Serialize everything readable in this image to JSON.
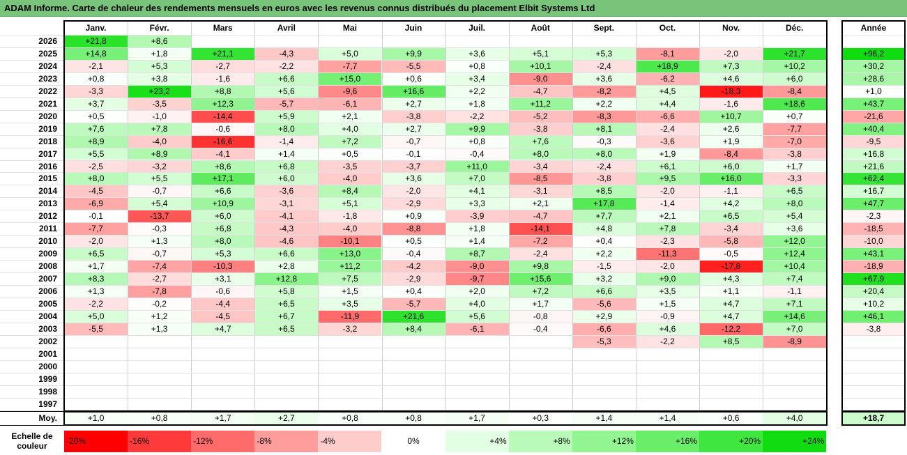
{
  "title": "ADAM Informe. Carte de chaleur des rendements mensuels en euros avec les revenus connus distribués du placement Elbit Systems Ltd",
  "chart_data": {
    "type": "heatmap",
    "title": "ADAM Informe. Carte de chaleur des rendements mensuels en euros avec les revenus connus distribués du placement Elbit Systems Ltd",
    "columns": [
      "Janv.",
      "Févr.",
      "Mars",
      "Avril",
      "Mai",
      "Juin",
      "Juil.",
      "Août",
      "Sept.",
      "Oct.",
      "Nov.",
      "Déc."
    ],
    "total_label": "Année",
    "average_label": "Moy.",
    "rows": [
      {
        "year": "2026",
        "values": [
          "+21,8",
          "+8,6",
          "",
          "",
          "",
          "",
          "",
          "",
          "",
          "",
          "",
          ""
        ],
        "total": ""
      },
      {
        "year": "2025",
        "values": [
          "+14,8",
          "+1,8",
          "+21,1",
          "-4,3",
          "+5,0",
          "+9,9",
          "+3,6",
          "+5,1",
          "+5,3",
          "-8,1",
          "-2,0",
          "+21,7"
        ],
        "total": "+96,2"
      },
      {
        "year": "2024",
        "values": [
          "-2,1",
          "+5,3",
          "-2,7",
          "-2,2",
          "-7,7",
          "-5,5",
          "+0,8",
          "+10,1",
          "-2,4",
          "+18,9",
          "+7,3",
          "+10,2"
        ],
        "total": "+30,2"
      },
      {
        "year": "2023",
        "values": [
          "+0,8",
          "+3,8",
          "-1,6",
          "+6,6",
          "+15,0",
          "+0,6",
          "+3,4",
          "-9,0",
          "+3,6",
          "-6,2",
          "+4,6",
          "+6,0"
        ],
        "total": "+28,6"
      },
      {
        "year": "2022",
        "values": [
          "-3,3",
          "+23,2",
          "+8,8",
          "+5,6",
          "-9,6",
          "+16,6",
          "+2,2",
          "-4,7",
          "-8,2",
          "+4,5",
          "-18,3",
          "-8,4"
        ],
        "total": "+1,0"
      },
      {
        "year": "2021",
        "values": [
          "+3,7",
          "-3,5",
          "+12,3",
          "-5,7",
          "-6,1",
          "+2,7",
          "+1,8",
          "+11,2",
          "+2,2",
          "+4,4",
          "-1,6",
          "+18,6"
        ],
        "total": "+43,7"
      },
      {
        "year": "2020",
        "values": [
          "+0,5",
          "-1,0",
          "-14,4",
          "+5,9",
          "+2,1",
          "-3,8",
          "-2,2",
          "-5,2",
          "-8,3",
          "-6,6",
          "+10,7",
          "+0,7"
        ],
        "total": "-21,6"
      },
      {
        "year": "2019",
        "values": [
          "+7,6",
          "+7,8",
          "-0,6",
          "+8,0",
          "+4,0",
          "+2,7",
          "+9,9",
          "-3,8",
          "+8,1",
          "-2,4",
          "+2,6",
          "-7,7"
        ],
        "total": "+40,4"
      },
      {
        "year": "2018",
        "values": [
          "+8,9",
          "-4,0",
          "-16,6",
          "-1,4",
          "+7,2",
          "-0,7",
          "+0,8",
          "+7,6",
          "-0,3",
          "-3,6",
          "+1,9",
          "-7,0"
        ],
        "total": "-9,5"
      },
      {
        "year": "2017",
        "values": [
          "+5,5",
          "+8,9",
          "-4,1",
          "+1,4",
          "+0,5",
          "-0,1",
          "-0,4",
          "+8,0",
          "+8,0",
          "+1,9",
          "-8,4",
          "-3,8"
        ],
        "total": "+16,8"
      },
      {
        "year": "2016",
        "values": [
          "-2,5",
          "-3,2",
          "+8,6",
          "+6,8",
          "-3,5",
          "-3,7",
          "+11,0",
          "-3,4",
          "-2,4",
          "+6,1",
          "+6,0",
          "+1,7"
        ],
        "total": "+21,6"
      },
      {
        "year": "2015",
        "values": [
          "+8,0",
          "+5,5",
          "+17,1",
          "+6,0",
          "-4,0",
          "+3,6",
          "+7,0",
          "-8,5",
          "-3,8",
          "+9,5",
          "+16,0",
          "-3,3"
        ],
        "total": "+62,4"
      },
      {
        "year": "2014",
        "values": [
          "-4,5",
          "-0,7",
          "+6,6",
          "-3,6",
          "+8,4",
          "-2,0",
          "+4,1",
          "-3,1",
          "+8,5",
          "-2,0",
          "-1,1",
          "+6,5"
        ],
        "total": "+16,7"
      },
      {
        "year": "2013",
        "values": [
          "-6,9",
          "+5,4",
          "+10,9",
          "-3,1",
          "+5,1",
          "-2,9",
          "+3,3",
          "+2,1",
          "+17,8",
          "-1,4",
          "+4,2",
          "+8,0"
        ],
        "total": "+47,7"
      },
      {
        "year": "2012",
        "values": [
          "-0,1",
          "-13,7",
          "+6,0",
          "-4,1",
          "-1,8",
          "+0,9",
          "-3,9",
          "-4,7",
          "+7,7",
          "+2,1",
          "+6,5",
          "+5,4"
        ],
        "total": "-2,3"
      },
      {
        "year": "2011",
        "values": [
          "-7,7",
          "-0,3",
          "+6,8",
          "-4,3",
          "-4,0",
          "-8,8",
          "+1,8",
          "-14,1",
          "+4,8",
          "+7,8",
          "-3,4",
          "+3,6"
        ],
        "total": "-18,5"
      },
      {
        "year": "2010",
        "values": [
          "-2,0",
          "+1,3",
          "+8,0",
          "-4,6",
          "-10,1",
          "+0,5",
          "+1,4",
          "-7,2",
          "+0,4",
          "-2,3",
          "-5,8",
          "+12,0"
        ],
        "total": "-10,0"
      },
      {
        "year": "2009",
        "values": [
          "+6,5",
          "-0,7",
          "+5,3",
          "+6,6",
          "+13,0",
          "-0,4",
          "+8,7",
          "-2,4",
          "+2,2",
          "-11,3",
          "-0,5",
          "+12,4"
        ],
        "total": "+43,1"
      },
      {
        "year": "2008",
        "values": [
          "+1,7",
          "-7,4",
          "-10,3",
          "+2,8",
          "+11,2",
          "-4,2",
          "-9,0",
          "+9,8",
          "-1,5",
          "-2,0",
          "-17,8",
          "+10,4"
        ],
        "total": "-18,9"
      },
      {
        "year": "2007",
        "values": [
          "+8,3",
          "-2,7",
          "+3,1",
          "+12,8",
          "+7,5",
          "-2,9",
          "-9,7",
          "+15,6",
          "+3,2",
          "+9,0",
          "+4,3",
          "+7,4"
        ],
        "total": "+67,9"
      },
      {
        "year": "2006",
        "values": [
          "+1,3",
          "-7,8",
          "-0,6",
          "+5,8",
          "+1,5",
          "+0,4",
          "+2,0",
          "+7,2",
          "+6,6",
          "+3,5",
          "+1,1",
          "-1,1"
        ],
        "total": "+20,4"
      },
      {
        "year": "2005",
        "values": [
          "-2,2",
          "-0,2",
          "-4,4",
          "+6,5",
          "+3,5",
          "-5,7",
          "+4,0",
          "+1,7",
          "-5,6",
          "+1,5",
          "+4,7",
          "+7,1"
        ],
        "total": "+10,2"
      },
      {
        "year": "2004",
        "values": [
          "+5,0",
          "+1,2",
          "-4,5",
          "+6,7",
          "-11,9",
          "+21,6",
          "+5,6",
          "-0,8",
          "+2,9",
          "-0,9",
          "+4,7",
          "+14,6"
        ],
        "total": "+46,1"
      },
      {
        "year": "2003",
        "values": [
          "-5,5",
          "+1,3",
          "+4,7",
          "+6,5",
          "-3,2",
          "+8,4",
          "-6,1",
          "-0,4",
          "-6,6",
          "+4,6",
          "-12,2",
          "+7,0"
        ],
        "total": "-3,8"
      },
      {
        "year": "2002",
        "values": [
          "",
          "",
          "",
          "",
          "",
          "",
          "",
          "",
          "-5,3",
          "-2,2",
          "+8,5",
          "-8,9"
        ],
        "total": ""
      },
      {
        "year": "2001",
        "values": [
          "",
          "",
          "",
          "",
          "",
          "",
          "",
          "",
          "",
          "",
          "",
          ""
        ],
        "total": ""
      },
      {
        "year": "2000",
        "values": [
          "",
          "",
          "",
          "",
          "",
          "",
          "",
          "",
          "",
          "",
          "",
          ""
        ],
        "total": ""
      },
      {
        "year": "1999",
        "values": [
          "",
          "",
          "",
          "",
          "",
          "",
          "",
          "",
          "",
          "",
          "",
          ""
        ],
        "total": ""
      },
      {
        "year": "1998",
        "values": [
          "",
          "",
          "",
          "",
          "",
          "",
          "",
          "",
          "",
          "",
          "",
          ""
        ],
        "total": ""
      },
      {
        "year": "1997",
        "values": [
          "",
          "",
          "",
          "",
          "",
          "",
          "",
          "",
          "",
          "",
          "",
          ""
        ],
        "total": ""
      }
    ],
    "averages": [
      "+1,0",
      "+0,8",
      "+1,7",
      "+2,7",
      "+0,8",
      "+0,8",
      "+1,7",
      "+0,3",
      "+1,4",
      "+1,4",
      "+0,6",
      "+4,0"
    ],
    "average_total": "+18,7",
    "color_scale": {
      "label_line1": "Echelle de",
      "label_line2": "couleur",
      "steps": [
        {
          "label": "-20%",
          "value": -20,
          "color": "#ff0000"
        },
        {
          "label": "-16%",
          "value": -16,
          "color": "#ff3a3a"
        },
        {
          "label": "-12%",
          "value": -12,
          "color": "#ff6a6a"
        },
        {
          "label": "-8%",
          "value": -8,
          "color": "#ff9d9d"
        },
        {
          "label": "-4%",
          "value": -4,
          "color": "#ffcccc"
        },
        {
          "label": "0%",
          "value": 0,
          "color": "#ffffff"
        },
        {
          "label": "+4%",
          "value": 4,
          "color": "#e3ffe3"
        },
        {
          "label": "+8%",
          "value": 8,
          "color": "#b9f9b9"
        },
        {
          "label": "+12%",
          "value": 12,
          "color": "#92f592"
        },
        {
          "label": "+16%",
          "value": 16,
          "color": "#6aee6a"
        },
        {
          "label": "+20%",
          "value": 20,
          "color": "#40e640"
        },
        {
          "label": "+24%",
          "value": 24,
          "color": "#10dd10"
        }
      ]
    }
  }
}
